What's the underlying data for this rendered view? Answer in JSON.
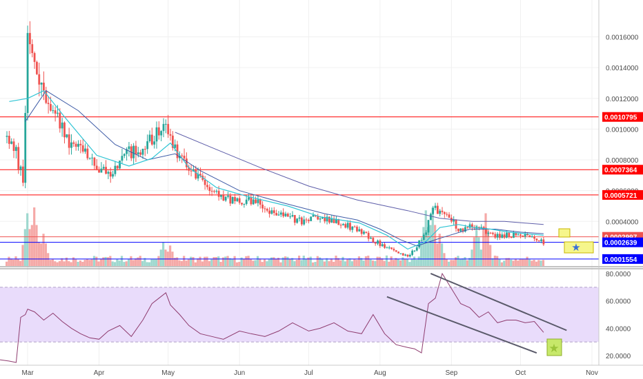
{
  "chart_data": [
    {
      "type": "candlestick",
      "pane": "price",
      "x_axis": {
        "ticks": [
          "Mar",
          "Apr",
          "May",
          "Jun",
          "Jul",
          "Aug",
          "Sep",
          "Oct",
          "Nov"
        ],
        "range": [
          "Feb 17",
          "Nov 4"
        ]
      },
      "y_axis": {
        "ticks": [
          "0.0016000",
          "0.0014000",
          "0.0012000",
          "0.0010000",
          "0.0008000",
          "0.0006000",
          "0.0004000"
        ],
        "ylim": [
          0.00011,
          0.00184
        ]
      },
      "series": [
        {
          "kind": "close_price_approx",
          "x": [
            "Feb 20",
            "Feb 24",
            "Feb 27",
            "Mar 1",
            "Mar 4",
            "Mar 8",
            "Mar 12",
            "Mar 18",
            "Mar 24",
            "Mar 28",
            "Apr 1",
            "Apr 6",
            "Apr 10",
            "Apr 15",
            "Apr 20",
            "Apr 25",
            "Apr 29",
            "May 2",
            "May 6",
            "May 10",
            "May 15",
            "May 20",
            "May 25",
            "Jun 1",
            "Jun 8",
            "Jun 15",
            "Jun 22",
            "Jun 28",
            "Jul 2",
            "Jul 8",
            "Jul 14",
            "Jul 20",
            "Jul 26",
            "Aug 2",
            "Aug 8",
            "Aug 13",
            "Aug 17",
            "Aug 21",
            "Aug 24",
            "Aug 27",
            "Sep 1",
            "Sep 5",
            "Sep 9",
            "Sep 12",
            "Sep 16",
            "Sep 20",
            "Sep 25",
            "Sep 30",
            "Oct 5",
            "Oct 11"
          ],
          "y": [
            0.00095,
            0.00085,
            0.00065,
            0.00155,
            0.00145,
            0.00125,
            0.00115,
            0.00095,
            0.00085,
            0.0008,
            0.00075,
            0.00072,
            0.0008,
            0.00085,
            0.00085,
            0.00095,
            0.00102,
            0.00092,
            0.00082,
            0.00072,
            0.00066,
            0.00058,
            0.00055,
            0.00054,
            0.00052,
            0.00047,
            0.00043,
            0.0004,
            0.00042,
            0.00041,
            0.00039,
            0.00036,
            0.00031,
            0.00024,
            0.00021,
            0.00017,
            0.00024,
            0.00033,
            0.00051,
            0.00045,
            0.00041,
            0.00034,
            0.00038,
            0.00037,
            0.00033,
            0.00031,
            0.00031,
            0.00031,
            0.0003,
            0.00026
          ]
        },
        {
          "kind": "moving_average_fast",
          "x": [
            "Feb 21",
            "Mar 1",
            "Mar 8",
            "Mar 17",
            "Mar 31",
            "Apr 14",
            "Apr 24",
            "May 2",
            "May 10",
            "May 22",
            "Jun 5",
            "Jun 22",
            "Jul 6",
            "Jul 23",
            "Aug 4",
            "Aug 13",
            "Aug 21",
            "Aug 27",
            "Sep 4",
            "Sep 11",
            "Sep 18",
            "Sep 26",
            "Oct 3",
            "Oct 11"
          ],
          "y": [
            0.00118,
            0.0012,
            0.00125,
            0.00108,
            0.00083,
            0.00076,
            0.00081,
            0.00091,
            0.00075,
            0.00062,
            0.00056,
            0.0005,
            0.00043,
            0.00039,
            0.00031,
            0.00022,
            0.00027,
            0.00036,
            0.00038,
            0.00036,
            0.00035,
            0.00033,
            0.00032,
            0.00031
          ]
        },
        {
          "kind": "moving_average_mid",
          "x": [
            "Feb 28",
            "Mar 9",
            "Mar 23",
            "Apr 8",
            "Apr 22",
            "May 4",
            "May 15",
            "Jun 1",
            "Jun 20",
            "Jul 8",
            "Jul 22",
            "Aug 1",
            "Aug 10",
            "Aug 17",
            "Aug 27",
            "Sep 9",
            "Sep 20",
            "Oct 1",
            "Oct 11"
          ],
          "y": [
            0.00105,
            0.00125,
            0.00112,
            0.0009,
            0.0008,
            0.00084,
            0.00073,
            0.0006,
            0.00052,
            0.00045,
            0.00041,
            0.00035,
            0.00028,
            0.00024,
            0.00029,
            0.00035,
            0.00035,
            0.00033,
            0.00032
          ]
        },
        {
          "kind": "moving_average_slow",
          "x": [
            "May 4",
            "May 20",
            "Jun 10",
            "Jul 1",
            "Jul 22",
            "Aug 13",
            "Aug 27",
            "Sep 10",
            "Sep 24",
            "Oct 11"
          ],
          "y": [
            0.00098,
            0.00088,
            0.00075,
            0.00063,
            0.00054,
            0.00047,
            0.00042,
            0.0004,
            0.0004,
            0.00038
          ]
        }
      ],
      "horizontal_levels": [
        {
          "value": 0.0010795,
          "label": "0.0010795",
          "color": "#ff0000"
        },
        {
          "value": 0.0007364,
          "label": "0.0007364",
          "color": "#ff0000"
        },
        {
          "value": 0.0005721,
          "label": "0.0005721",
          "color": "#ff0000"
        },
        {
          "value": 0.0002997,
          "label": "0.0002997",
          "color": "#ef5350"
        },
        {
          "value": 0.0002639,
          "label": "0.0002639",
          "color": "#0000ff"
        },
        {
          "value": 0.0001554,
          "label": "0.0001554",
          "color": "#0000ff"
        }
      ],
      "annotations": [
        {
          "kind": "rectangle",
          "color": "#f6f68c",
          "note": "yellow box"
        },
        {
          "kind": "rectangle",
          "color": "#f6f68c",
          "note": "yellow box with blue star"
        }
      ],
      "colors": {
        "up": "#26a69a",
        "down": "#ef5350",
        "ma_fast": "#2ec4d4",
        "ma_mid": "#3c5aa6",
        "ma_slow": "#5c5ca8"
      }
    },
    {
      "type": "volume_bar",
      "pane": "price",
      "x": [
        "Mar 1",
        "Mar 4",
        "Mar 8",
        "Apr 29",
        "May 2",
        "Aug 21",
        "Aug 24",
        "Aug 27",
        "Sep 12",
        "Sep 16"
      ],
      "y": [
        0.9,
        1.0,
        0.55,
        0.4,
        0.35,
        0.95,
        1.0,
        0.55,
        0.7,
        0.9
      ],
      "unit": "relative"
    },
    {
      "type": "line",
      "pane": "rsi",
      "y_axis": {
        "ticks": [
          "80.0000",
          "60.0000",
          "40.0000",
          "20.0000"
        ],
        "ylim": [
          13,
          83
        ]
      },
      "band": {
        "upper": 70,
        "lower": 30,
        "color": "#e9dcfb"
      },
      "series": [
        {
          "kind": "rsi",
          "color": "#8e3b6e",
          "x": [
            "Feb 17",
            "Feb 21",
            "Feb 24",
            "Feb 26",
            "Feb 28",
            "Mar 1",
            "Mar 4",
            "Mar 8",
            "Mar 12",
            "Mar 16",
            "Mar 20",
            "Mar 24",
            "Mar 28",
            "Apr 1",
            "Apr 5",
            "Apr 10",
            "Apr 15",
            "Apr 20",
            "Apr 24",
            "Apr 27",
            "Apr 30",
            "May 2",
            "May 6",
            "May 10",
            "May 15",
            "May 20",
            "May 25",
            "Jun 1",
            "Jun 6",
            "Jun 12",
            "Jun 18",
            "Jun 24",
            "Jul 1",
            "Jul 6",
            "Jul 12",
            "Jul 18",
            "Jul 24",
            "Jul 29",
            "Aug 3",
            "Aug 8",
            "Aug 13",
            "Aug 16",
            "Aug 19",
            "Aug 22",
            "Aug 25",
            "Aug 28",
            "Sep 1",
            "Sep 5",
            "Sep 9",
            "Sep 13",
            "Sep 17",
            "Sep 21",
            "Sep 25",
            "Sep 29",
            "Oct 3",
            "Oct 7",
            "Oct 11"
          ],
          "y": [
            17,
            16,
            15,
            48,
            50,
            54,
            52,
            46,
            51,
            45,
            40,
            36,
            33,
            32,
            38,
            42,
            34,
            46,
            58,
            62,
            66,
            57,
            50,
            42,
            36,
            34,
            32,
            38,
            36,
            34,
            38,
            44,
            38,
            40,
            44,
            38,
            36,
            50,
            36,
            28,
            26,
            25,
            22,
            58,
            62,
            80,
            69,
            58,
            55,
            48,
            52,
            44,
            46,
            46,
            44,
            45,
            37
          ]
        }
      ],
      "trendlines": [
        {
          "kind": "upper",
          "x": [
            "Aug 23",
            "Oct 21"
          ],
          "y": [
            80,
            38.5
          ]
        },
        {
          "kind": "lower",
          "x": [
            "Aug 4",
            "Oct 8"
          ],
          "y": [
            63,
            22
          ]
        }
      ],
      "annotations": [
        {
          "kind": "rectangle",
          "color": "#c7e86a",
          "note": "star marker at RSI ~20"
        }
      ]
    }
  ]
}
